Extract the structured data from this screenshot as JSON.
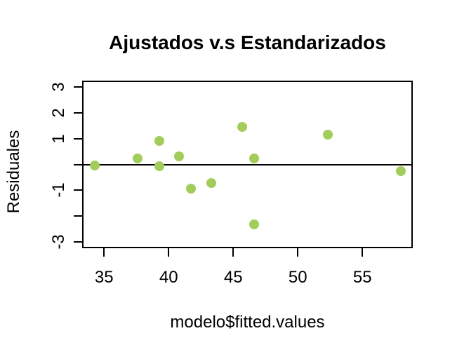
{
  "title": "Ajustados v.s Estandarizados",
  "x_axis": {
    "label": "modelo$fitted.values",
    "ticks": [
      {
        "value": 35,
        "label": "35"
      },
      {
        "value": 40,
        "label": "40"
      },
      {
        "value": 45,
        "label": "45"
      },
      {
        "value": 50,
        "label": "50"
      },
      {
        "value": 55,
        "label": "55"
      }
    ]
  },
  "y_axis": {
    "label": "Residuales",
    "ticks": [
      {
        "value": 3,
        "label": "3"
      },
      {
        "value": 2,
        "label": "2"
      },
      {
        "value": 1,
        "label": "1"
      },
      {
        "value": 0,
        "label": ""
      },
      {
        "value": -1,
        "label": "-1"
      },
      {
        "value": -2,
        "label": ""
      },
      {
        "value": -3,
        "label": "-3"
      }
    ]
  },
  "colors": {
    "point": "#A2CD5A",
    "axis": "#000000",
    "background": "#FFFFFF"
  },
  "chart_data": {
    "type": "scatter",
    "title": "Ajustados v.s Estandarizados",
    "xlabel": "modelo$fitted.values",
    "ylabel": "Residuales",
    "xlim": [
      33.3,
      58.9
    ],
    "ylim": [
      -3.25,
      3.25
    ],
    "x_ticks": [
      35,
      40,
      45,
      50,
      55
    ],
    "y_ticks": [
      3,
      2,
      1,
      0,
      -1,
      -2,
      -3
    ],
    "y_tick_labels_shown": [
      "3",
      "2",
      "1",
      "-1",
      "-3"
    ],
    "hline": 0,
    "grid": false,
    "legend": false,
    "marker": "filled-circle",
    "marker_color": "#A2CD5A",
    "points": [
      {
        "x": 34.3,
        "y": -0.05
      },
      {
        "x": 37.6,
        "y": 0.23
      },
      {
        "x": 39.3,
        "y": 0.92
      },
      {
        "x": 39.3,
        "y": -0.06
      },
      {
        "x": 40.8,
        "y": 0.32
      },
      {
        "x": 41.7,
        "y": -0.93
      },
      {
        "x": 43.3,
        "y": -0.71
      },
      {
        "x": 45.7,
        "y": 1.46
      },
      {
        "x": 46.6,
        "y": 0.23
      },
      {
        "x": 46.6,
        "y": -2.33
      },
      {
        "x": 52.3,
        "y": 1.15
      },
      {
        "x": 58.0,
        "y": -0.27
      }
    ]
  }
}
